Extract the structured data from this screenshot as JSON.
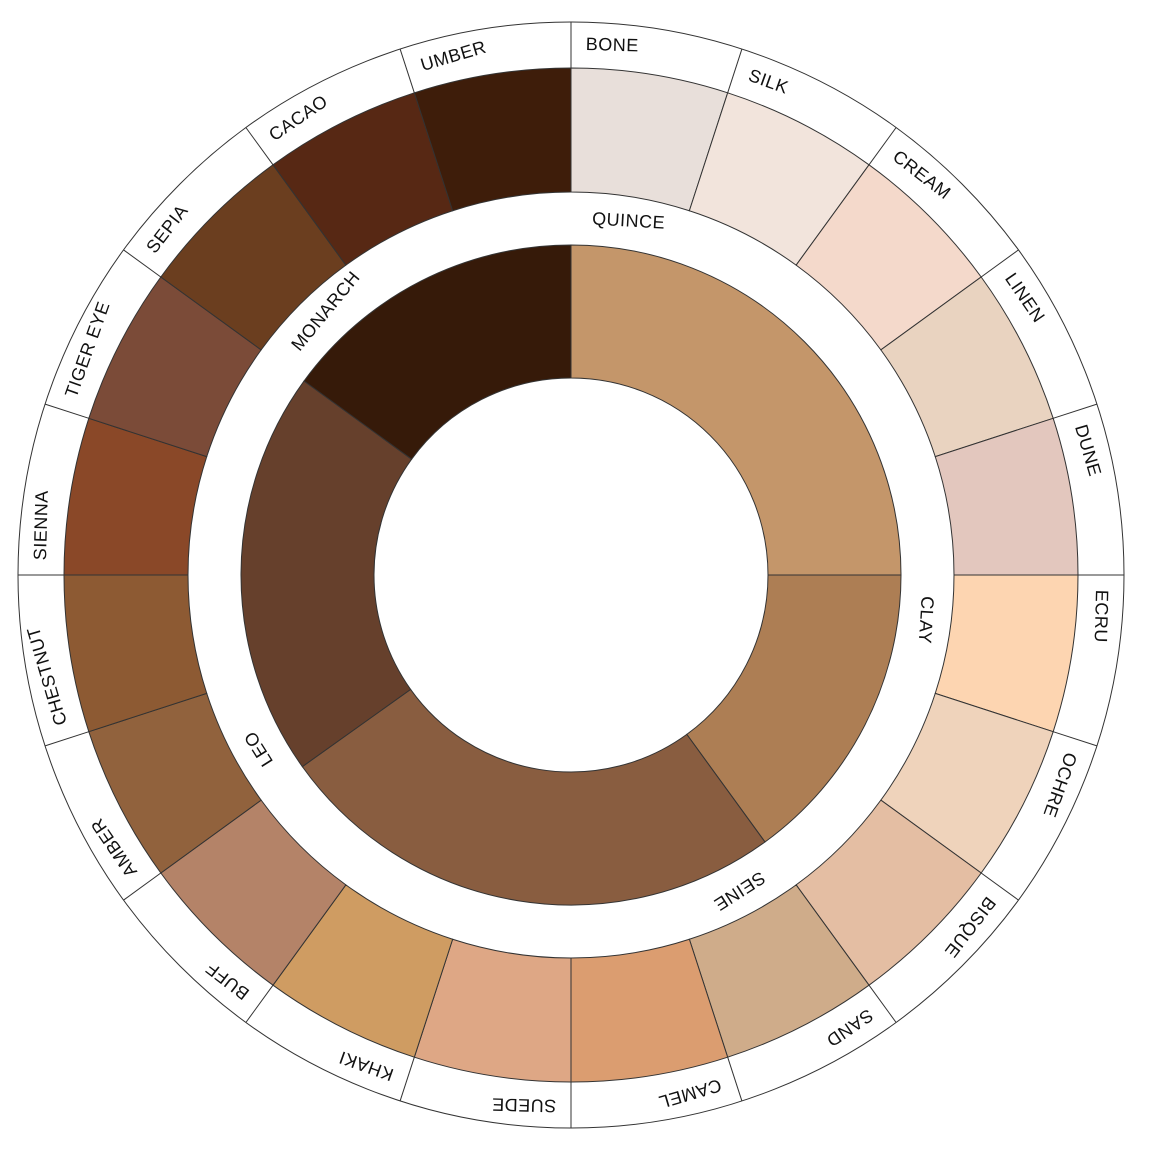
{
  "outer_ring": [
    {
      "label": "BONE",
      "color": "#e8dfda"
    },
    {
      "label": "SILK",
      "color": "#f2e4dc"
    },
    {
      "label": "CREAM",
      "color": "#f4d9cb"
    },
    {
      "label": "LINEN",
      "color": "#e9d3c0"
    },
    {
      "label": "DUNE",
      "color": "#e3c7be"
    },
    {
      "label": "ECRU",
      "color": "#fdd5b1"
    },
    {
      "label": "OCHRE",
      "color": "#efd3bb"
    },
    {
      "label": "BISQUE",
      "color": "#e4bea3"
    },
    {
      "label": "SAND",
      "color": "#cfac8a"
    },
    {
      "label": "CAMEL",
      "color": "#db9d70"
    },
    {
      "label": "SUEDE",
      "color": "#dea785"
    },
    {
      "label": "KHAKI",
      "color": "#cf9c62"
    },
    {
      "label": "BUFF",
      "color": "#b48368"
    },
    {
      "label": "AMBER",
      "color": "#91623d"
    },
    {
      "label": "CHESTNUT",
      "color": "#8d5a33"
    },
    {
      "label": "SIENNA",
      "color": "#8a4828"
    },
    {
      "label": "TIGER EYE",
      "color": "#7b4b38"
    },
    {
      "label": "SEPIA",
      "color": "#6b3e1f"
    },
    {
      "label": "CACAO",
      "color": "#572814"
    },
    {
      "label": "UMBER",
      "color": "#3e1d0a"
    }
  ],
  "inner_ring": [
    {
      "label": "QUINCE",
      "color": "#c4966a"
    },
    {
      "label": "CLAY",
      "color": "#ad7e54"
    },
    {
      "label": "SEINE",
      "color": "#895d40"
    },
    {
      "label": "LEO",
      "color": "#66402c"
    },
    {
      "label": "MONARCH",
      "color": "#361a09"
    }
  ]
}
